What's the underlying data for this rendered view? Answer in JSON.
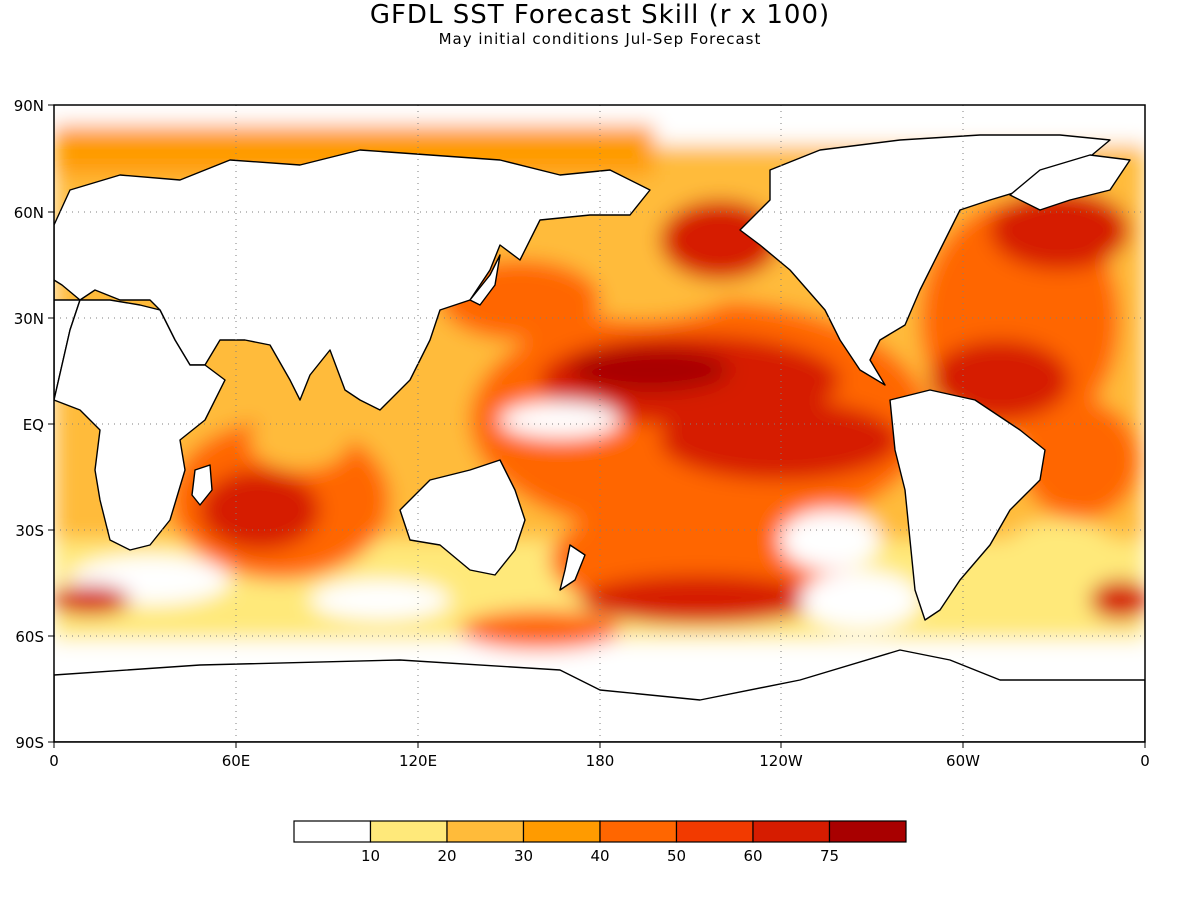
{
  "title": "GFDL SST Forecast Skill (r x 100)",
  "subtitle": "May initial conditions  Jul-Sep Forecast",
  "map": {
    "lat_labels": [
      "90N",
      "60N",
      "30N",
      "EQ",
      "30S",
      "60S",
      "90S"
    ],
    "lon_labels": [
      "0",
      "60E",
      "120E",
      "180",
      "120W",
      "60W",
      "0"
    ],
    "land_color": "#ffffff",
    "coastline_color": "#000000",
    "grid": "dotted"
  },
  "legend": {
    "colors": [
      "#ffffff",
      "#ffe97a",
      "#ffbb3a",
      "#ff9b00",
      "#ff6600",
      "#f23a00",
      "#d61c00",
      "#a80000"
    ],
    "labels": [
      "10",
      "20",
      "30",
      "40",
      "50",
      "60",
      "75"
    ]
  }
}
